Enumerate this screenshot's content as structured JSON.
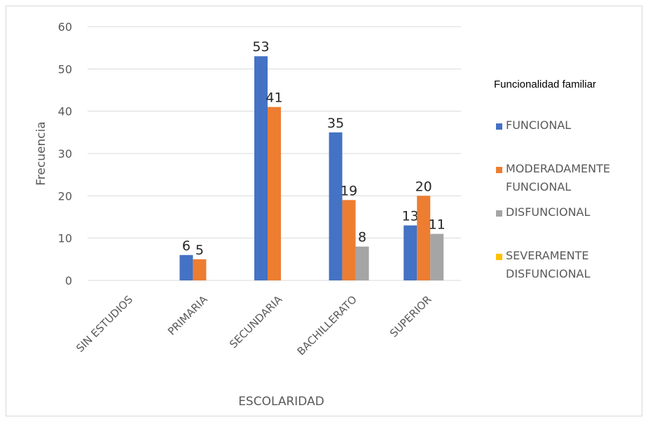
{
  "chart_data": {
    "type": "bar",
    "categories": [
      "SIN ESTUDIOS",
      "PRIMARIA",
      "SECUNDARIA",
      "BACHILLERATO",
      "SUPERIOR"
    ],
    "series": [
      {
        "name": "FUNCIONAL",
        "color": "#4472c4",
        "values": [
          null,
          6,
          53,
          35,
          13
        ]
      },
      {
        "name": "MODERADAMENTE FUNCIONAL",
        "color": "#ed7d31",
        "values": [
          null,
          5,
          41,
          19,
          20
        ]
      },
      {
        "name": "DISFUNCIONAL",
        "color": "#a5a5a5",
        "values": [
          null,
          null,
          null,
          8,
          11
        ]
      },
      {
        "name": "SEVERAMENTE DISFUNCIONAL",
        "color": "#ffc000",
        "values": [
          null,
          null,
          null,
          null,
          null
        ]
      }
    ],
    "xlabel": "ESCOLARIDAD",
    "ylabel": "Frecuencia",
    "ylim": [
      0,
      60
    ],
    "yticks": [
      0,
      10,
      20,
      30,
      40,
      50,
      60
    ],
    "grid": true,
    "legend_title": "Funcionalidad familiar",
    "legend_position": "right"
  }
}
